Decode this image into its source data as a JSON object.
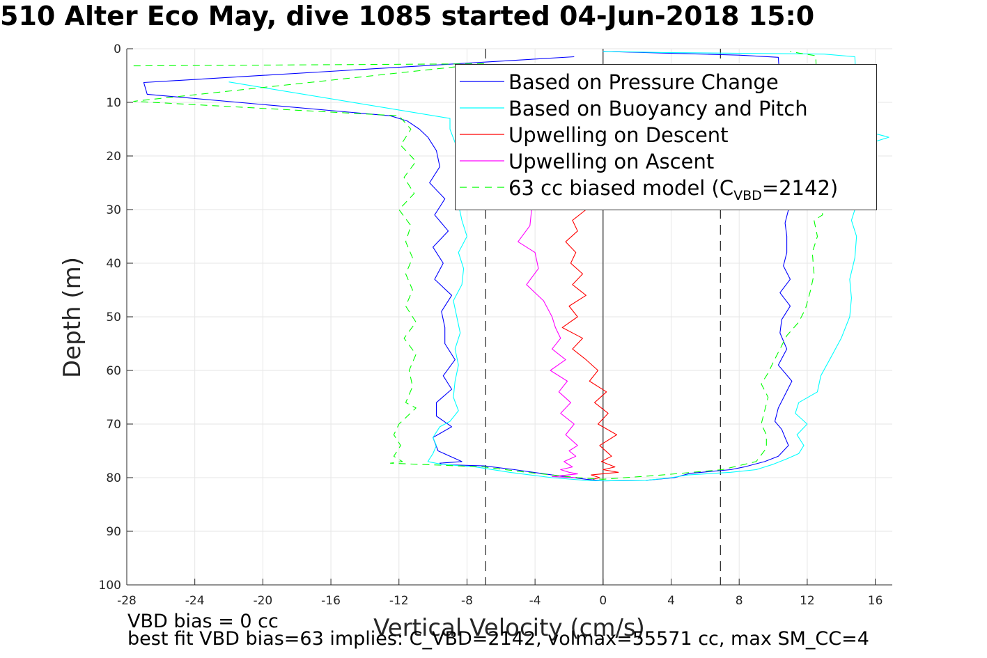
{
  "title": "510 Alter Eco May, dive 1085 started 04-Jun-2018 15:0",
  "notes": {
    "line1": "VBD bias = 0 cc",
    "line2": "best fit VBD bias=63 implies: C_VBD=2142, volmax=55571 cc, max SM_CC=4"
  },
  "chart_data": {
    "type": "line",
    "title": "510 Alter Eco May, dive 1085 started 04-Jun-2018 15:0",
    "xlabel": "Vertical Velocity (cm/s)",
    "ylabel": "Depth (m)",
    "xlim": [
      -28,
      17
    ],
    "ylim": [
      100,
      0
    ],
    "y_reversed": true,
    "xticks": [
      -28,
      -24,
      -20,
      -16,
      -12,
      -8,
      -4,
      0,
      4,
      8,
      12,
      16
    ],
    "yticks": [
      0,
      10,
      20,
      30,
      40,
      50,
      60,
      70,
      80,
      90,
      100
    ],
    "grid": true,
    "legend_position": "top-right",
    "reference_lines": {
      "x_solid": 0,
      "x_dashed": [
        -6.9,
        6.9
      ]
    },
    "series": [
      {
        "name": "Based on Pressure Change",
        "color": "#0000ff",
        "style": "solid",
        "x": [
          -1.7,
          -27,
          -26.8,
          -12.5,
          -11.5,
          -10.8,
          -10.3,
          -9.8,
          -9.6,
          -10.2,
          -9.3,
          -9.9,
          -9.1,
          -10.0,
          -9.4,
          -9.9,
          -8.9,
          -9.5,
          -9.3,
          -9.3,
          -8.7,
          -9.4,
          -8.9,
          -9.8,
          -9.8,
          -8.9,
          -10.0,
          -9.7,
          -8.3,
          -9.6,
          -9.5,
          -9.1,
          -7.0,
          -5.2,
          -3.0,
          -1.0,
          0,
          2.5,
          4.2,
          5.1,
          7.5,
          8.3,
          9.5,
          10.3,
          10.9,
          10.7,
          10.5,
          10.1,
          10.3,
          10.7,
          11.1,
          10.3,
          10.8,
          10.4,
          10.5,
          11.0,
          10.4,
          11.0,
          10.6,
          10.8,
          10.8,
          10.7,
          10.9,
          10.3,
          8.0,
          3.5,
          0
        ],
        "y": [
          1.5,
          6.3,
          8.5,
          12.5,
          13.5,
          15.0,
          16.5,
          19.0,
          22.0,
          25.0,
          28.0,
          31.0,
          34.0,
          37.0,
          40.0,
          43.0,
          46.0,
          49.0,
          52.0,
          55.0,
          58.0,
          61.0,
          63.5,
          66.0,
          68.5,
          70.5,
          72.5,
          75.0,
          77.0,
          77.3,
          77.5,
          77.6,
          77.8,
          78.5,
          79.5,
          80.3,
          80.6,
          80.5,
          80.0,
          79.2,
          78.5,
          78.0,
          77.0,
          76.0,
          74.0,
          72.5,
          71.0,
          69.5,
          67.0,
          64.5,
          62.0,
          59.0,
          56.0,
          53.0,
          50.5,
          48.0,
          45.5,
          43.0,
          40.5,
          38.0,
          35.0,
          32.5,
          30.0,
          1.6,
          1.2,
          0.8,
          0.5
        ]
      },
      {
        "name": "Based on Buoyancy and Pitch",
        "color": "#00ffff",
        "style": "solid",
        "x": [
          -22.0,
          -9.0,
          -9.0,
          -8.7,
          -8.2,
          -8.5,
          -8.0,
          -8.5,
          -8.3,
          -8.0,
          -8.5,
          -8.2,
          -8.3,
          -8.8,
          -8.6,
          -8.4,
          -8.7,
          -8.5,
          -8.7,
          -8.8,
          -8.5,
          -9.0,
          -9.6,
          -10.0,
          -9.8,
          -10.0,
          -10.2,
          -10.3,
          -9.5,
          -7.5,
          -5.5,
          -3.0,
          -1.0,
          0,
          2.5,
          4.0,
          5.0,
          7.5,
          9.0,
          10.0,
          10.8,
          11.5,
          11.8,
          11.4,
          12.0,
          11.3,
          11.5,
          12.6,
          12.8,
          13.4,
          14.0,
          14.5,
          14.6,
          14.5,
          14.8,
          14.9,
          14.6,
          15.0,
          14.5,
          14.8,
          15.8,
          16.8,
          15.0,
          14.8,
          13.0,
          3.5,
          0
        ],
        "y": [
          6.2,
          13.0,
          15.0,
          17.5,
          20.0,
          23.0,
          26.0,
          29.0,
          32.0,
          35.0,
          38.0,
          41.0,
          44.0,
          47.0,
          50.0,
          53.0,
          56.0,
          59.0,
          62.0,
          65.0,
          67.5,
          69.5,
          70.5,
          72.5,
          74.0,
          75.5,
          76.5,
          77.0,
          77.5,
          78.0,
          79.0,
          80.0,
          80.5,
          80.6,
          80.5,
          80.0,
          79.5,
          79.0,
          78.5,
          77.5,
          76.5,
          75.5,
          74.0,
          72.0,
          70.0,
          68.0,
          66.0,
          64.0,
          61.0,
          57.5,
          54.0,
          50.0,
          46.5,
          43.0,
          39.0,
          35.0,
          32.0,
          28.0,
          24.0,
          20.0,
          17.5,
          16.5,
          15.0,
          1.5,
          1.0,
          0.7,
          0.5
        ]
      },
      {
        "name": "Upwelling on Descent",
        "color": "#ff0000",
        "style": "solid",
        "x": [
          -1.0,
          -1.8,
          -1.5,
          -2.2,
          -1.6,
          -1.9,
          -1.2,
          -1.8,
          -1.0,
          -2.0,
          -1.5,
          -2.4,
          -1.2,
          -1.8,
          -1.0,
          -0.3,
          -0.8,
          0.2,
          -0.5,
          0.3,
          -0.3,
          0.8,
          -0.2,
          0.5,
          -0.1,
          0.7,
          0,
          0.9,
          -0.7,
          -0.2,
          -0.6
        ],
        "y": [
          30.0,
          32.0,
          34.0,
          36.0,
          38.0,
          40.0,
          42.0,
          44.0,
          46.0,
          48.0,
          50.0,
          52.0,
          54.0,
          56.0,
          58.0,
          60.0,
          62.0,
          64.0,
          66.0,
          68.0,
          70.0,
          72.0,
          74.0,
          76.0,
          77.0,
          78.0,
          78.5,
          79.0,
          79.5,
          80.0,
          80.3
        ]
      },
      {
        "name": "Upwelling on Ascent",
        "color": "#ff00ff",
        "style": "solid",
        "x": [
          -4.2,
          -4.3,
          -5.0,
          -4.0,
          -3.8,
          -4.5,
          -3.5,
          -3.0,
          -2.8,
          -2.5,
          -3.0,
          -2.2,
          -3.1,
          -2.1,
          -2.6,
          -1.9,
          -2.5,
          -1.7,
          -2.2,
          -1.5,
          -2.0,
          -1.6,
          -2.3,
          -1.8,
          -2.5,
          -2.0,
          -1.5,
          -2.4,
          -3.0,
          -1.6
        ],
        "y": [
          30.0,
          33.0,
          36.0,
          38.0,
          41.0,
          44.0,
          47.0,
          50.0,
          52.0,
          54.0,
          56.0,
          58.0,
          60.0,
          62.0,
          64.0,
          66.0,
          68.0,
          70.0,
          72.0,
          74.0,
          75.0,
          76.0,
          77.0,
          78.0,
          78.5,
          79.0,
          79.3,
          79.6,
          79.8,
          80.0
        ]
      },
      {
        "name": "63 cc biased model (C_VBD=2142)",
        "color": "#00ff00",
        "style": "dashed",
        "x": [
          -27.6,
          -7.0,
          -27.6,
          -12.0,
          -11.3,
          -11.9,
          -11.0,
          -11.7,
          -11.1,
          -12.0,
          -11.3,
          -11.6,
          -11.2,
          -11.6,
          -11.2,
          -11.6,
          -11.0,
          -11.7,
          -11.0,
          -11.4,
          -11.2,
          -11.6,
          -11.0,
          -11.5,
          -12.0,
          -12.3,
          -11.9,
          -12.3,
          -11.8,
          -12.5,
          -7.0,
          -4.5,
          -1.5,
          0,
          3.5,
          7.0,
          9.0,
          9.6,
          9.6,
          9.3,
          9.5,
          9.7,
          9.3,
          9.7,
          10.0,
          10.4,
          10.8,
          11.5,
          11.9,
          12.2,
          12.4,
          12.3,
          12.6,
          12.4,
          12.9,
          12.5,
          11.5,
          11.0
        ],
        "y": [
          3.2,
          2.8,
          9.8,
          12.5,
          15.0,
          18.0,
          21.0,
          24.0,
          27.0,
          30.0,
          33.0,
          36.0,
          39.0,
          42.0,
          45.0,
          48.0,
          51.0,
          54.0,
          57.0,
          60.0,
          63.0,
          66.0,
          67.0,
          68.5,
          70.0,
          72.0,
          74.0,
          76.0,
          77.0,
          77.3,
          78.0,
          79.0,
          80.0,
          80.3,
          79.5,
          78.5,
          77.0,
          74.5,
          72.0,
          70.0,
          67.5,
          65.0,
          62.5,
          60.5,
          58.5,
          56.0,
          53.5,
          51.0,
          48.5,
          45.0,
          42.0,
          38.0,
          35.0,
          32.0,
          31.0,
          1.3,
          0.8,
          0.5
        ]
      }
    ]
  },
  "legend": {
    "items": [
      {
        "label": "Based on Pressure Change",
        "color": "#0000ff",
        "style": "solid"
      },
      {
        "label": "Based on Buoyancy and Pitch",
        "color": "#00ffff",
        "style": "solid"
      },
      {
        "label": "Upwelling on Descent",
        "color": "#ff0000",
        "style": "solid"
      },
      {
        "label": "Upwelling on Ascent",
        "color": "#ff00ff",
        "style": "solid"
      },
      {
        "label_prefix": "63 cc biased model (C",
        "label_sub": "VBD",
        "label_suffix": "=2142)",
        "color": "#00ff00",
        "style": "dashed"
      }
    ]
  }
}
